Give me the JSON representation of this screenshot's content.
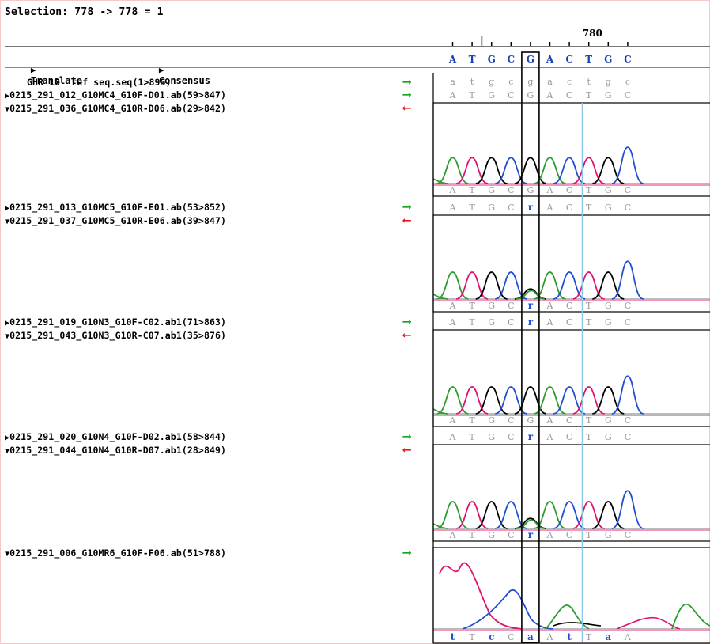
{
  "selection": "Selection: 778 -> 778 = 1",
  "ruler": {
    "label": "780"
  },
  "header": {
    "translate_label": "Translate",
    "consensus_label": "Consensus",
    "consensus_bases": [
      "A",
      "T",
      "G",
      "C",
      "G",
      "A",
      "C",
      "T",
      "G",
      "C"
    ]
  },
  "reference": {
    "name": "GHR 10  ref seq.seq(1>895)",
    "bases": [
      "a",
      "t",
      "g",
      "c",
      "g",
      "a",
      "c",
      "t",
      "g",
      "c"
    ]
  },
  "groups": [
    {
      "forward": {
        "name": "0215_291_012_G10MC4_G10F-D01.ab(59>847)",
        "direction": "forward",
        "bases": [
          "A",
          "T",
          "G",
          "C",
          "G",
          "A",
          "C",
          "T",
          "G",
          "C"
        ]
      },
      "reverse": {
        "name": "0215_291_036_G10MC4_G10R-D06.ab(29>842)",
        "direction": "reverse",
        "bases": [
          "A",
          "T",
          "G",
          "C",
          "G",
          "A",
          "C",
          "T",
          "G",
          "C"
        ]
      }
    },
    {
      "forward": {
        "name": "0215_291_013_G10MC5_G10F-E01.ab(53>852)",
        "direction": "forward",
        "bases": [
          "A",
          "T",
          "G",
          "C",
          "r",
          "A",
          "C",
          "T",
          "G",
          "C"
        ]
      },
      "reverse": {
        "name": "0215_291_037_G10MC5_G10R-E06.ab(39>847)",
        "direction": "reverse",
        "bases": [
          "A",
          "T",
          "G",
          "C",
          "r",
          "A",
          "C",
          "T",
          "G",
          "C"
        ]
      }
    },
    {
      "forward": {
        "name": "0215_291_019_G10N3_G10F-C02.ab1(71>863)",
        "direction": "forward",
        "bases": [
          "A",
          "T",
          "G",
          "C",
          "r",
          "A",
          "C",
          "T",
          "G",
          "C"
        ]
      },
      "reverse": {
        "name": "0215_291_043_G10N3_G10R-C07.ab1(35>876)",
        "direction": "reverse",
        "bases": [
          "A",
          "T",
          "G",
          "C",
          "G",
          "A",
          "C",
          "T",
          "G",
          "C"
        ]
      }
    },
    {
      "forward": {
        "name": "0215_291_020_G10N4_G10F-D02.ab1(58>844)",
        "direction": "forward",
        "bases": [
          "A",
          "T",
          "G",
          "C",
          "r",
          "A",
          "C",
          "T",
          "G",
          "C"
        ]
      },
      "reverse": {
        "name": "0215_291_044_G10N4_G10R-D07.ab1(28>849)",
        "direction": "reverse",
        "bases": [
          "A",
          "T",
          "G",
          "C",
          "r",
          "A",
          "C",
          "T",
          "G",
          "C"
        ]
      }
    },
    {
      "forward": {
        "name": "0215_291_006_G10MR6_G10F-F06.ab(51>788)",
        "direction": "forward",
        "bases": [
          "t",
          "T",
          "c",
          "C",
          "a",
          "A",
          "t",
          "T",
          "a",
          "A"
        ]
      }
    }
  ],
  "colors": {
    "A": "#2e9b2e",
    "C": "#1f4fd0",
    "G": "#000000",
    "T": "#e0116f",
    "ambiguous": "#1f4fd0",
    "forward_arrow": "#1aa31a",
    "reverse_arrow": "#e01b1b",
    "cursor_line": "#8cc8e6",
    "highlight_box": "#000000"
  }
}
